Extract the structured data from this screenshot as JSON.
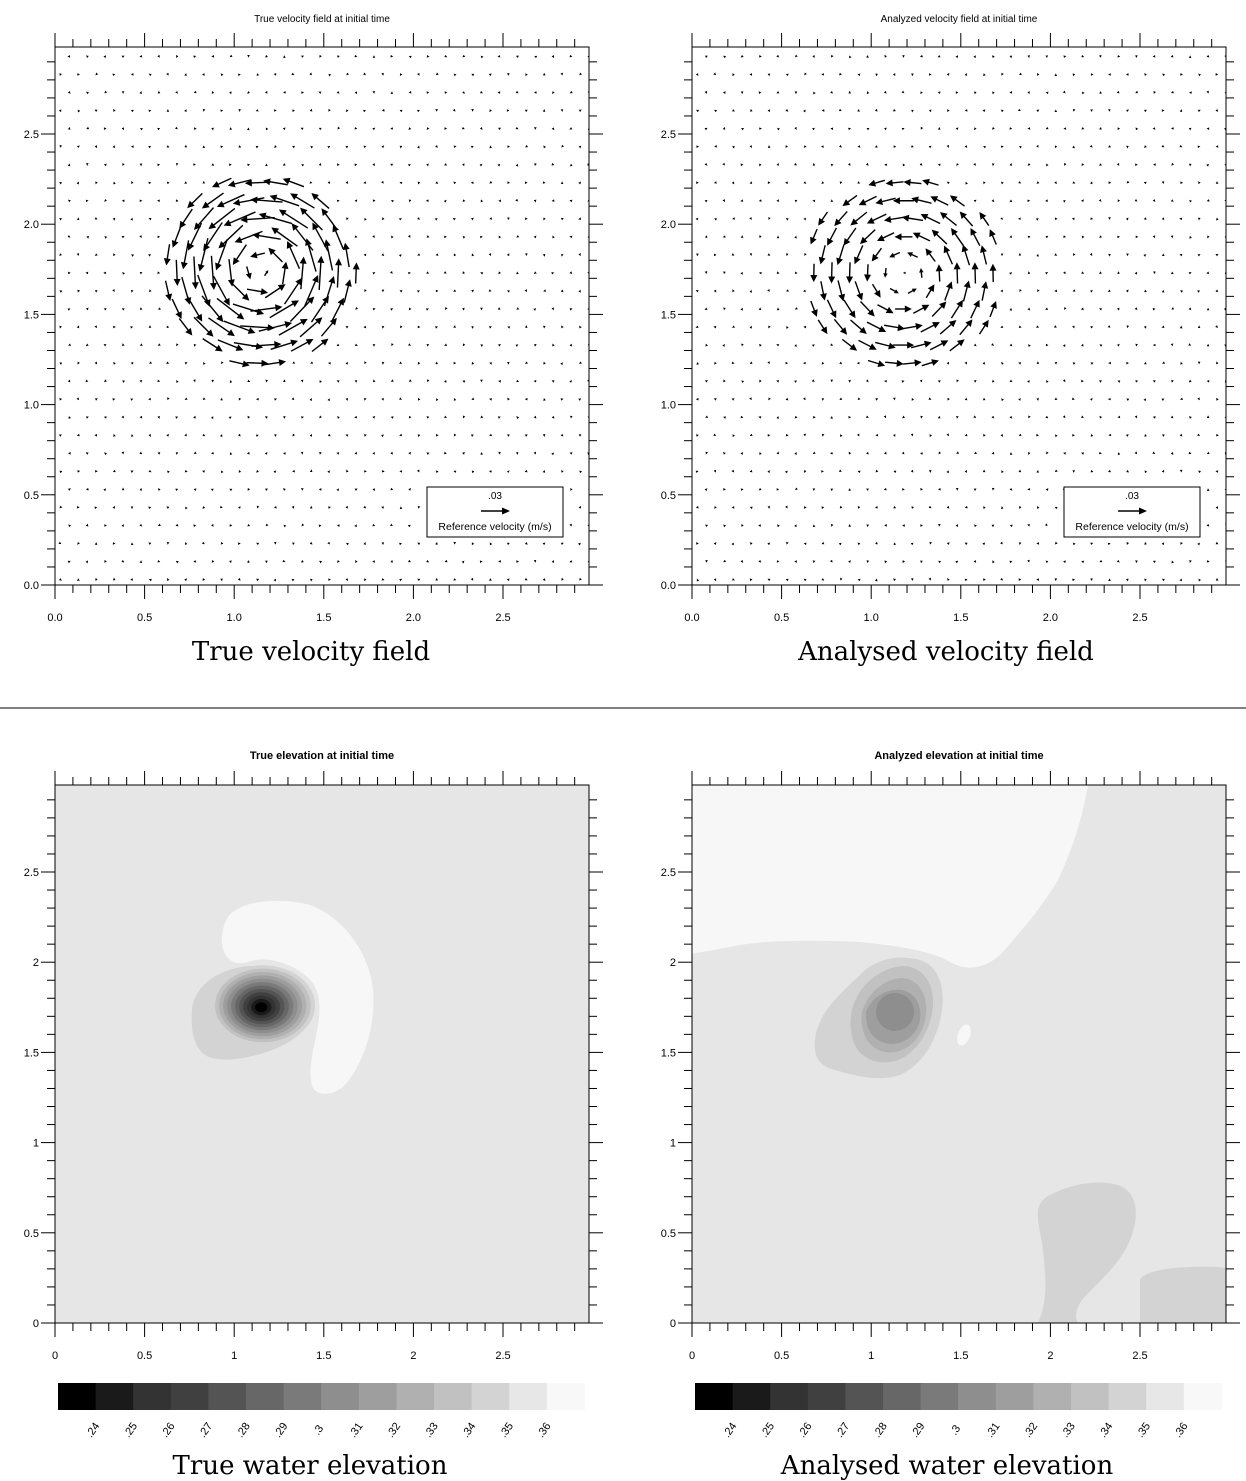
{
  "chart_data": [
    {
      "type": "vector-field",
      "title": "True velocity field at initial time",
      "caption": "True velocity field",
      "xlim": [
        0,
        3
      ],
      "ylim": [
        0,
        3
      ],
      "x_ticks": [
        "0.0",
        "0.5",
        "1.0",
        "1.5",
        "2.0",
        "2.5"
      ],
      "y_ticks": [
        "0.0",
        "0.5",
        "1.0",
        "1.5",
        "2.0",
        "2.5"
      ],
      "vortex_center": [
        1.15,
        1.75
      ],
      "vortex_radius": 0.3,
      "vortex_peak_speed_ms": 0.04,
      "reference": {
        "value": ".03",
        "label": "Reference velocity (m/s)"
      }
    },
    {
      "type": "vector-field",
      "title": "Analyzed velocity field at initial time",
      "caption": "Analysed velocity field",
      "xlim": [
        0,
        3
      ],
      "ylim": [
        0,
        3
      ],
      "x_ticks": [
        "0.0",
        "0.5",
        "1.0",
        "1.5",
        "2.0",
        "2.5"
      ],
      "y_ticks": [
        "0.0",
        "0.5",
        "1.0",
        "1.5",
        "2.0",
        "2.5"
      ],
      "vortex_center": [
        1.18,
        1.72
      ],
      "vortex_radius": 0.35,
      "vortex_peak_speed_ms": 0.025,
      "reference": {
        "value": ".03",
        "label": "Reference velocity (m/s)"
      }
    },
    {
      "type": "contour",
      "title": "True elevation at initial time",
      "caption": "True water elevation",
      "xlim": [
        0,
        3
      ],
      "ylim": [
        0,
        3
      ],
      "x_ticks": [
        "0",
        "0.5",
        "1",
        "1.5",
        "2",
        "2.5"
      ],
      "y_ticks": [
        "0",
        "0.5",
        "1",
        "1.5",
        "2",
        "2.5"
      ],
      "background_level": 0.35,
      "minimum": {
        "x": 1.15,
        "y": 1.75,
        "value": 0.235
      },
      "colorbar_labels": [
        ".24",
        ".25",
        ".26",
        ".27",
        ".28",
        ".29",
        ".3",
        ".31",
        ".32",
        ".33",
        ".34",
        ".35",
        ".36"
      ]
    },
    {
      "type": "contour",
      "title": "Analyzed elevation at initial time",
      "caption": "Analysed water elevation",
      "xlim": [
        0,
        3
      ],
      "ylim": [
        0,
        3
      ],
      "x_ticks": [
        "0",
        "0.5",
        "1",
        "1.5",
        "2",
        "2.5"
      ],
      "y_ticks": [
        "0",
        "0.5",
        "1",
        "1.5",
        "2",
        "2.5"
      ],
      "background_level": 0.35,
      "minimum": {
        "x": 1.13,
        "y": 1.73,
        "value": 0.305
      },
      "colorbar_labels": [
        ".24",
        ".25",
        ".26",
        ".27",
        ".28",
        ".29",
        ".3",
        ".31",
        ".32",
        ".33",
        ".34",
        ".35",
        ".36"
      ]
    }
  ],
  "colors": {
    "colorbar": [
      "#000000",
      "#1a1a1a",
      "#333333",
      "#404040",
      "#545454",
      "#676767",
      "#7a7a7a",
      "#8e8e8e",
      "#9e9e9e",
      "#b0b0b0",
      "#c1c1c1",
      "#d3d3d3",
      "#e7e7e7",
      "#f8f8f8"
    ],
    "field_background": "#e6e6e6",
    "field_high": "#f7f7f7",
    "contour_fill_light": "#d4d4d4"
  }
}
